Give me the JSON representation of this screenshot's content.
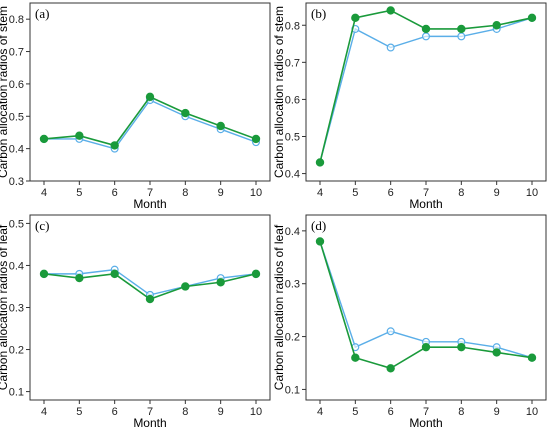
{
  "colors": {
    "green": "#1a9a3b",
    "blue": "#5aaee8",
    "axis": "#333333"
  },
  "chart_data": [
    {
      "type": "line",
      "panel_label": "(a)",
      "xlabel": "Month",
      "ylabel": "Carbon allocation radios of stem",
      "x": [
        4,
        5,
        6,
        7,
        8,
        9,
        10
      ],
      "xticks": [
        "4",
        "5",
        "6",
        "7",
        "8",
        "9",
        "10"
      ],
      "ylim": [
        0.3,
        0.85
      ],
      "yticks": [
        "0.3",
        "0.4",
        "0.5",
        "0.6",
        "0.7",
        "0.8"
      ],
      "grid": false,
      "series": [
        {
          "color": "#1a9a3b",
          "marker": "filled-circle",
          "values": [
            0.43,
            0.44,
            0.41,
            0.56,
            0.51,
            0.47,
            0.43
          ]
        },
        {
          "color": "#5aaee8",
          "marker": "open-circle",
          "values": [
            0.43,
            0.43,
            0.4,
            0.55,
            0.5,
            0.46,
            0.42
          ]
        }
      ]
    },
    {
      "type": "line",
      "panel_label": "(b)",
      "xlabel": "Month",
      "ylabel": "Carbon allocation radios of stem",
      "x": [
        4,
        5,
        6,
        7,
        8,
        9,
        10
      ],
      "xticks": [
        "4",
        "5",
        "6",
        "7",
        "8",
        "9",
        "10"
      ],
      "ylim": [
        0.38,
        0.86
      ],
      "yticks": [
        "0.4",
        "0.5",
        "0.6",
        "0.7",
        "0.8"
      ],
      "grid": false,
      "series": [
        {
          "color": "#1a9a3b",
          "marker": "filled-circle",
          "values": [
            0.43,
            0.82,
            0.84,
            0.79,
            0.79,
            0.8,
            0.82
          ]
        },
        {
          "color": "#5aaee8",
          "marker": "open-circle",
          "values": [
            0.43,
            0.79,
            0.74,
            0.77,
            0.77,
            0.79,
            0.82
          ]
        }
      ]
    },
    {
      "type": "line",
      "panel_label": "(c)",
      "xlabel": "Month",
      "ylabel": "Carbon allocation radios of leaf",
      "x": [
        4,
        5,
        6,
        7,
        8,
        9,
        10
      ],
      "xticks": [
        "4",
        "5",
        "6",
        "7",
        "8",
        "9",
        "10"
      ],
      "ylim": [
        0.08,
        0.52
      ],
      "yticks": [
        "0.1",
        "0.2",
        "0.3",
        "0.4",
        "0.5"
      ],
      "grid": false,
      "series": [
        {
          "color": "#1a9a3b",
          "marker": "filled-circle",
          "values": [
            0.38,
            0.37,
            0.38,
            0.32,
            0.35,
            0.36,
            0.38
          ]
        },
        {
          "color": "#5aaee8",
          "marker": "open-circle",
          "values": [
            0.38,
            0.38,
            0.39,
            0.33,
            0.35,
            0.37,
            0.38
          ]
        }
      ]
    },
    {
      "type": "line",
      "panel_label": "(d)",
      "xlabel": "Month",
      "ylabel": "Carbon allocation radios of leaf",
      "x": [
        4,
        5,
        6,
        7,
        8,
        9,
        10
      ],
      "xticks": [
        "4",
        "5",
        "6",
        "7",
        "8",
        "9",
        "10"
      ],
      "ylim": [
        0.08,
        0.43
      ],
      "yticks": [
        "0.1",
        "0.2",
        "0.3",
        "0.4"
      ],
      "grid": false,
      "series": [
        {
          "color": "#1a9a3b",
          "marker": "filled-circle",
          "values": [
            0.38,
            0.16,
            0.14,
            0.18,
            0.18,
            0.17,
            0.16
          ]
        },
        {
          "color": "#5aaee8",
          "marker": "open-circle",
          "values": [
            0.38,
            0.18,
            0.21,
            0.19,
            0.19,
            0.18,
            0.16
          ]
        }
      ]
    }
  ]
}
